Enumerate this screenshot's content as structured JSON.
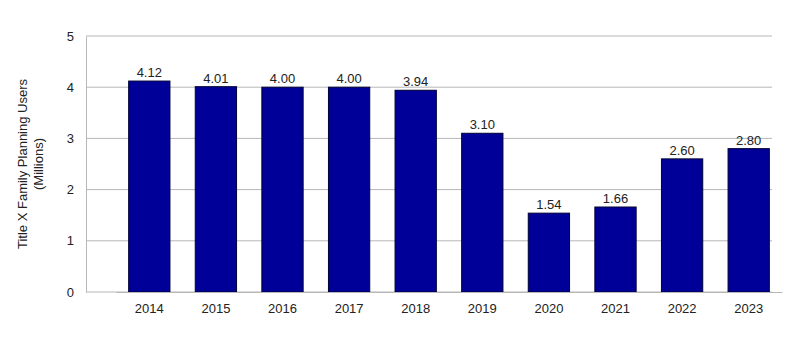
{
  "chart_data": {
    "type": "bar",
    "y_label": "Title X Family Planning Users (Millions)",
    "categories": [
      "2014",
      "2015",
      "2016",
      "2017",
      "2018",
      "2019",
      "2020",
      "2021",
      "2022",
      "2023"
    ],
    "values": [
      4.12,
      4.01,
      4.0,
      4.0,
      3.94,
      3.1,
      1.54,
      1.66,
      2.6,
      2.8
    ],
    "value_labels": [
      "4.12",
      "4.01",
      "4.00",
      "4.00",
      "3.94",
      "3.10",
      "1.54",
      "1.66",
      "2.60",
      "2.80"
    ],
    "color": "#000099",
    "ylim": [
      0,
      5
    ],
    "yticks": [
      0,
      1,
      2,
      3,
      4,
      5
    ],
    "grid": true,
    "data_labels": true
  }
}
